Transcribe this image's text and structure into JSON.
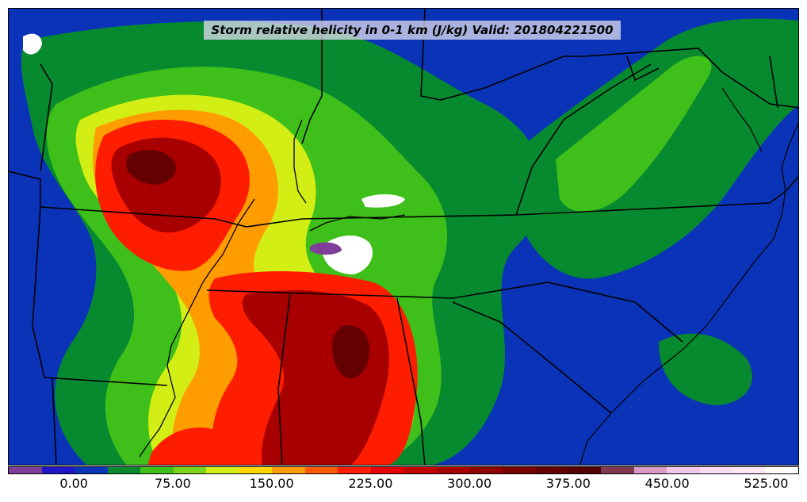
{
  "title": "Storm relative helicity in 0-1 km (J/kg) Valid: 201804221500",
  "colorbar": {
    "colors": [
      "#7f3f98",
      "#2016c8",
      "#0a33b8",
      "#078a2f",
      "#3fbf1a",
      "#7ed61a",
      "#d2ee14",
      "#ffd800",
      "#ff9c00",
      "#ff5a00",
      "#ff1d00",
      "#e20000",
      "#c20000",
      "#a80000",
      "#900000",
      "#7a0000",
      "#640000",
      "#520000",
      "#7d3a52",
      "#d79ac5",
      "#f2c8ec",
      "#fbdcf6",
      "#ffe8fb",
      "#ffffff"
    ],
    "tick_labels": [
      "0.00",
      "75.00",
      "150.00",
      "225.00",
      "300.00",
      "375.00",
      "450.00",
      "525.00"
    ]
  },
  "map": {
    "background_color": "#0a33b8",
    "fields": [
      {
        "name": "green-band-west",
        "color": "#078a2f"
      },
      {
        "name": "yellow-core-arkansas",
        "color": "#d2ee14"
      },
      {
        "name": "red-core-missouri",
        "color": "#ff1d00"
      },
      {
        "name": "darkred-core-missouri",
        "color": "#a80000"
      },
      {
        "name": "red-core-alabama",
        "color": "#ff1d00"
      },
      {
        "name": "darkred-core-alabama",
        "color": "#a80000"
      },
      {
        "name": "green-band-appalachia",
        "color": "#3fbf1a"
      },
      {
        "name": "white-blob-kentucky",
        "color": "#ffffff"
      }
    ]
  }
}
